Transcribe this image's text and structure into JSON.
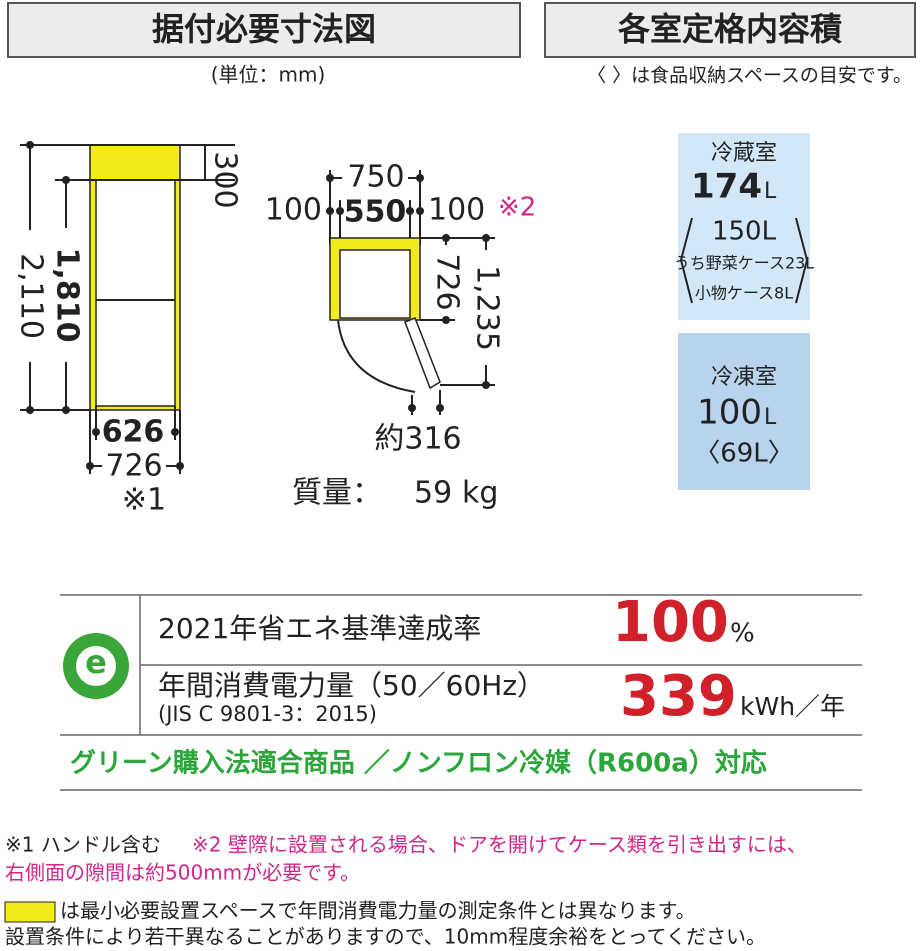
{
  "header": {
    "dimensions_title": "据付必要寸法図",
    "unit_note": "(単位：mm)",
    "capacity_title": "各室定格内容積",
    "capacity_note": "〈 〉は食品収納スペースの目安です。"
  },
  "front_view": {
    "total_height": "2,110",
    "body_height": "1,810",
    "top_clearance": "300",
    "body_width": "626",
    "total_width": "726",
    "width_note": "※1"
  },
  "top_view": {
    "total_width": "750",
    "left_clearance": "100",
    "body_width": "550",
    "right_clearance": "100",
    "right_note": "※2",
    "depth": "726",
    "door_open_depth": "1,235",
    "door_swing": "約316"
  },
  "weight": {
    "label": "質量：",
    "value": "59",
    "unit": "kg"
  },
  "refrigerator": {
    "name": "冷蔵室",
    "total": "174",
    "unit": "L",
    "storage": "150L",
    "vegetable_case": "うち野菜ケース23L",
    "small_case": "小物ケース8L"
  },
  "freezer": {
    "name": "冷凍室",
    "total": "100",
    "unit": "L",
    "storage": "〈69L〉"
  },
  "energy": {
    "logo": "e",
    "standard_label": "2021年省エネ基準達成率",
    "achievement": "100",
    "achievement_unit": "%",
    "consumption_label": "年間消費電力量（50／60Hz）",
    "consumption_standard": "(JIS C 9801-3：2015)",
    "consumption": "339",
    "consumption_unit": "kWh／年",
    "green_note": "グリーン購入法適合商品 ／ノンフロン冷媒（R600a）対応"
  },
  "notes": {
    "note1": "※1 ハンドル含む",
    "note2": "※2 壁際に設置される場合、ドアを開けてケース類を引き出すには、",
    "note2_cont": "右側面の隙間は約500mmが必要です。",
    "yellow_note": "は最小必要設置スペースで年間消費電力量の測定条件とは異なります。",
    "install_note": "設置条件により若干異なることがありますので、10mm程度余裕をとってください。"
  }
}
